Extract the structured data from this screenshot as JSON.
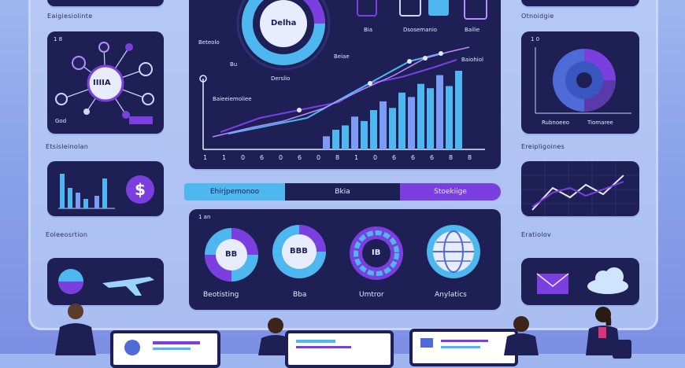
{
  "header": {
    "top_left_label": "Eaigiesiolinte",
    "top_right_label": "Otnoidgie"
  },
  "network_card": {
    "corner": "1 8",
    "hub_text": "IIIIA",
    "bottom_label": "God"
  },
  "section_labels": {
    "left_middle": "Etsisleinolan",
    "left_lower": "Eoleeosrtion",
    "right_middle": "Ereipligoines",
    "right_lower": "Eratiolov"
  },
  "top_icons": {
    "donut_text": "Delha",
    "left": "Bia",
    "middle": "Dsosemanio",
    "right": "Bailie"
  },
  "main_chart": {
    "label_a": "Beteolo",
    "label_b": "Bu",
    "label_c": "Derslio",
    "label_d": "Beiae",
    "label_e": "Baieeiemoliee",
    "label_f": "Baiohiol"
  },
  "chart_data": {
    "type": "bar",
    "categories": [
      "1",
      "1",
      "0",
      "6",
      "0",
      "6",
      "0",
      "8",
      "1",
      "0",
      "6",
      "6",
      "6",
      "8",
      "8"
    ],
    "values": [
      12,
      18,
      22,
      30,
      26,
      36,
      44,
      38,
      52,
      48,
      60,
      56,
      68,
      58,
      72
    ],
    "xlabel": "",
    "ylabel": ""
  },
  "tick_labels": [
    "1",
    "1",
    "0",
    "6",
    "0",
    "6",
    "0",
    "8",
    "1",
    "0",
    "6",
    "6",
    "6",
    "8",
    "8"
  ],
  "pills": {
    "left": "Ehirjpemonoo",
    "middle": "Bkia",
    "right": "Stoekiige"
  },
  "pie_card": {
    "corner": "1 0",
    "label_left": "Rubnoeeo",
    "label_right": "Tiomaree"
  },
  "donuts_panel": {
    "corner": "1 an",
    "items": [
      {
        "center": "BB",
        "label": "Beotisting"
      },
      {
        "center": "BBB",
        "label": "Bba"
      },
      {
        "center": "IB",
        "label": "Umtror"
      },
      {
        "center": "",
        "label": "Anylatics"
      }
    ]
  },
  "colors": {
    "navy": "#1e1f55",
    "purple": "#7b3fe0",
    "cyan": "#4fb7ef",
    "light": "#b6c9f5"
  }
}
